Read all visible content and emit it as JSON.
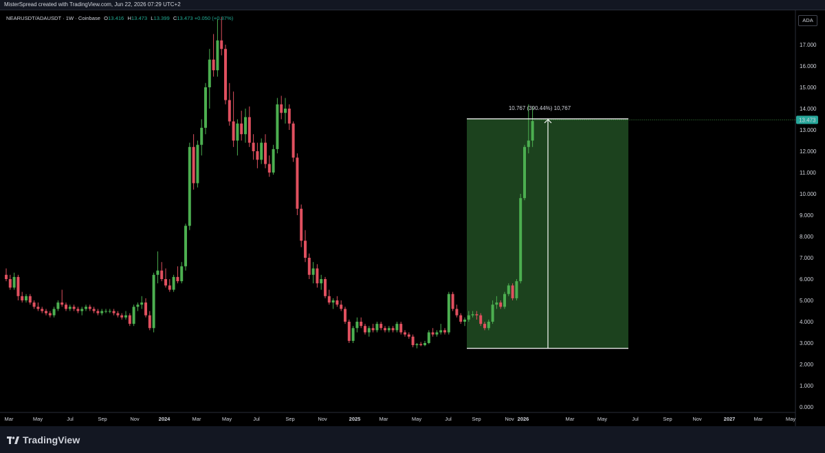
{
  "header": {
    "credit": "MisterSpread created with TradingView.com, Jun 22, 2026 07:29 UTC+2"
  },
  "legend": {
    "symbol": "NEARUSDT/ADAUSDT · 1W · Coinbase",
    "o_label": "O",
    "o_value": "13.416",
    "h_label": "H",
    "h_value": "13.473",
    "l_label": "L",
    "l_value": "13.399",
    "c_label": "C",
    "c_value": "13.473",
    "change": "+0.050 (+0.37%)"
  },
  "currency_button": "ADA",
  "footer": {
    "brand": "TradingView"
  },
  "colors": {
    "up": "#22ab94",
    "up_candle": "#4caf50",
    "down": "#f23645",
    "down_candle": "#e0505f",
    "measure_fill": "#1e4620",
    "last_price_bg": "#26a69a",
    "background": "#000000"
  },
  "chart_data": {
    "type": "candlestick",
    "timeframe": "1W",
    "ylim": [
      0,
      18
    ],
    "y_ticks": [
      "0.000",
      "1.000",
      "2.000",
      "3.000",
      "4.000",
      "5.000",
      "6.000",
      "7.000",
      "8.000",
      "9.000",
      "10.000",
      "11.000",
      "12.000",
      "13.000",
      "14.000",
      "15.000",
      "16.000",
      "17.000"
    ],
    "x_ticks": [
      "Mar",
      "May",
      "Jul",
      "Sep",
      "Nov",
      "2024",
      "Mar",
      "May",
      "Jul",
      "Sep",
      "Nov",
      "2025",
      "Mar",
      "May",
      "Jul",
      "Sep",
      "Nov",
      "2026",
      "Mar",
      "May",
      "Jul",
      "Sep",
      "Nov",
      "2027",
      "Mar",
      "May"
    ],
    "x_ticks_bold": [
      "2024",
      "2025",
      "2026",
      "2027"
    ],
    "last_price": "13.473",
    "measure": {
      "label": "10.767 (390.44%) 10,767",
      "low": 2.75,
      "high": 13.52
    },
    "ohlc": [
      [
        6.2,
        6.5,
        5.9,
        6.0
      ],
      [
        6.0,
        6.2,
        5.5,
        5.6
      ],
      [
        5.6,
        6.3,
        5.5,
        6.1
      ],
      [
        6.1,
        6.2,
        5.0,
        5.2
      ],
      [
        5.2,
        5.4,
        4.9,
        5.0
      ],
      [
        5.0,
        5.3,
        4.9,
        5.2
      ],
      [
        5.2,
        5.3,
        4.8,
        4.9
      ],
      [
        4.9,
        5.0,
        4.6,
        4.7
      ],
      [
        4.7,
        4.9,
        4.5,
        4.6
      ],
      [
        4.6,
        4.7,
        4.4,
        4.5
      ],
      [
        4.5,
        4.6,
        4.3,
        4.4
      ],
      [
        4.4,
        4.5,
        4.2,
        4.3
      ],
      [
        4.3,
        4.7,
        4.2,
        4.6
      ],
      [
        4.6,
        5.0,
        4.5,
        4.9
      ],
      [
        4.9,
        5.5,
        4.7,
        4.8
      ],
      [
        4.8,
        4.9,
        4.5,
        4.6
      ],
      [
        4.6,
        4.8,
        4.5,
        4.7
      ],
      [
        4.7,
        4.8,
        4.5,
        4.6
      ],
      [
        4.6,
        4.7,
        4.4,
        4.5
      ],
      [
        4.5,
        4.7,
        4.3,
        4.6
      ],
      [
        4.6,
        4.8,
        4.5,
        4.7
      ],
      [
        4.7,
        4.8,
        4.5,
        4.6
      ],
      [
        4.6,
        4.7,
        4.4,
        4.5
      ],
      [
        4.5,
        4.6,
        4.3,
        4.4
      ],
      [
        4.4,
        4.6,
        4.3,
        4.5
      ],
      [
        4.5,
        4.6,
        4.4,
        4.5
      ],
      [
        4.5,
        4.6,
        4.4,
        4.5
      ],
      [
        4.5,
        4.6,
        4.3,
        4.4
      ],
      [
        4.4,
        4.5,
        4.2,
        4.3
      ],
      [
        4.3,
        4.4,
        4.1,
        4.2
      ],
      [
        4.2,
        4.5,
        4.1,
        4.3
      ],
      [
        4.3,
        4.4,
        3.8,
        3.9
      ],
      [
        3.9,
        4.8,
        3.8,
        4.7
      ],
      [
        4.7,
        4.9,
        4.5,
        4.8
      ],
      [
        4.8,
        5.2,
        4.6,
        4.9
      ],
      [
        4.9,
        5.1,
        4.2,
        4.3
      ],
      [
        4.3,
        4.5,
        3.6,
        3.7
      ],
      [
        3.7,
        6.3,
        3.5,
        6.2
      ],
      [
        6.2,
        7.3,
        5.8,
        6.4
      ],
      [
        6.4,
        6.8,
        5.9,
        6.0
      ],
      [
        6.0,
        6.5,
        5.6,
        5.7
      ],
      [
        5.7,
        6.0,
        5.4,
        5.5
      ],
      [
        5.5,
        6.2,
        5.4,
        6.1
      ],
      [
        6.1,
        6.6,
        5.8,
        5.9
      ],
      [
        5.9,
        6.8,
        5.8,
        6.6
      ],
      [
        6.6,
        8.6,
        6.4,
        8.5
      ],
      [
        8.5,
        12.4,
        8.3,
        12.2
      ],
      [
        12.2,
        12.8,
        10.2,
        10.5
      ],
      [
        10.5,
        12.5,
        10.3,
        12.3
      ],
      [
        12.3,
        13.5,
        11.8,
        13.1
      ],
      [
        13.1,
        15.2,
        12.8,
        15.0
      ],
      [
        15.0,
        16.8,
        14.0,
        16.3
      ],
      [
        16.3,
        17.5,
        15.5,
        15.8
      ],
      [
        15.8,
        18.2,
        15.5,
        17.2
      ],
      [
        17.2,
        18.3,
        16.5,
        16.8
      ],
      [
        16.8,
        17.0,
        14.2,
        14.4
      ],
      [
        14.4,
        15.2,
        13.2,
        13.4
      ],
      [
        13.4,
        14.8,
        12.2,
        12.5
      ],
      [
        12.5,
        13.5,
        11.8,
        13.3
      ],
      [
        13.3,
        13.9,
        12.5,
        12.8
      ],
      [
        12.8,
        14.0,
        12.4,
        13.6
      ],
      [
        13.6,
        14.1,
        12.2,
        12.4
      ],
      [
        12.4,
        12.8,
        11.6,
        12.0
      ],
      [
        12.0,
        12.4,
        11.2,
        11.6
      ],
      [
        11.6,
        12.6,
        11.4,
        12.4
      ],
      [
        12.4,
        12.8,
        11.2,
        11.4
      ],
      [
        11.4,
        11.8,
        10.8,
        11.0
      ],
      [
        11.0,
        12.3,
        10.9,
        12.1
      ],
      [
        12.1,
        14.5,
        11.9,
        14.2
      ],
      [
        14.2,
        14.6,
        13.5,
        13.8
      ],
      [
        13.8,
        14.5,
        13.3,
        14.0
      ],
      [
        14.0,
        14.2,
        13.0,
        13.3
      ],
      [
        13.3,
        13.4,
        11.5,
        11.7
      ],
      [
        11.7,
        11.9,
        9.0,
        9.3
      ],
      [
        9.3,
        9.5,
        7.5,
        7.8
      ],
      [
        7.8,
        8.3,
        6.8,
        7.0
      ],
      [
        7.0,
        7.2,
        6.0,
        6.2
      ],
      [
        6.2,
        6.8,
        5.8,
        6.5
      ],
      [
        6.5,
        6.7,
        5.6,
        5.8
      ],
      [
        5.8,
        6.2,
        5.5,
        6.0
      ],
      [
        6.0,
        6.1,
        5.1,
        5.2
      ],
      [
        5.2,
        5.5,
        4.8,
        4.9
      ],
      [
        4.9,
        5.1,
        4.6,
        5.0
      ],
      [
        5.0,
        5.2,
        4.7,
        4.8
      ],
      [
        4.8,
        5.0,
        4.5,
        4.6
      ],
      [
        4.6,
        4.7,
        3.9,
        4.0
      ],
      [
        4.0,
        4.1,
        3.0,
        3.1
      ],
      [
        3.1,
        3.8,
        3.0,
        3.7
      ],
      [
        3.7,
        4.2,
        3.5,
        4.0
      ],
      [
        4.0,
        4.2,
        3.7,
        3.8
      ],
      [
        3.8,
        3.9,
        3.4,
        3.5
      ],
      [
        3.5,
        3.8,
        3.3,
        3.7
      ],
      [
        3.7,
        3.9,
        3.5,
        3.6
      ],
      [
        3.6,
        4.0,
        3.5,
        3.9
      ],
      [
        3.9,
        4.0,
        3.6,
        3.7
      ],
      [
        3.7,
        3.8,
        3.5,
        3.6
      ],
      [
        3.6,
        3.8,
        3.5,
        3.7
      ],
      [
        3.7,
        3.8,
        3.5,
        3.6
      ],
      [
        3.6,
        4.0,
        3.5,
        3.9
      ],
      [
        3.9,
        4.0,
        3.4,
        3.5
      ],
      [
        3.5,
        3.6,
        3.3,
        3.4
      ],
      [
        3.4,
        3.5,
        3.2,
        3.3
      ],
      [
        3.3,
        3.4,
        2.8,
        2.9
      ],
      [
        2.9,
        3.0,
        2.75,
        2.95
      ],
      [
        2.95,
        3.05,
        2.85,
        2.9
      ],
      [
        2.9,
        3.1,
        2.85,
        3.0
      ],
      [
        3.0,
        3.6,
        2.95,
        3.5
      ],
      [
        3.5,
        3.7,
        3.3,
        3.4
      ],
      [
        3.4,
        3.6,
        3.3,
        3.5
      ],
      [
        3.5,
        3.9,
        3.4,
        3.6
      ],
      [
        3.6,
        3.7,
        3.4,
        3.5
      ],
      [
        3.5,
        5.4,
        3.4,
        5.3
      ],
      [
        5.3,
        5.4,
        4.5,
        4.6
      ],
      [
        4.6,
        4.8,
        4.2,
        4.3
      ],
      [
        4.3,
        4.4,
        3.9,
        4.0
      ],
      [
        4.0,
        4.2,
        3.8,
        4.1
      ],
      [
        4.1,
        4.5,
        4.0,
        4.3
      ],
      [
        4.3,
        4.5,
        4.2,
        4.35
      ],
      [
        4.35,
        4.5,
        4.1,
        4.3
      ],
      [
        4.3,
        4.4,
        3.8,
        3.9
      ],
      [
        3.9,
        4.0,
        3.6,
        3.7
      ],
      [
        3.7,
        4.1,
        3.6,
        4.0
      ],
      [
        4.0,
        5.0,
        3.9,
        4.8
      ],
      [
        4.8,
        5.2,
        4.6,
        4.9
      ],
      [
        4.9,
        5.0,
        4.6,
        4.7
      ],
      [
        4.7,
        5.4,
        4.6,
        5.3
      ],
      [
        5.3,
        5.8,
        5.2,
        5.7
      ],
      [
        5.7,
        5.8,
        5.0,
        5.1
      ],
      [
        5.1,
        6.0,
        5.0,
        5.9
      ],
      [
        5.9,
        10.0,
        5.8,
        9.8
      ],
      [
        9.8,
        12.3,
        9.7,
        12.2
      ],
      [
        12.2,
        14.2,
        11.9,
        12.5
      ],
      [
        12.5,
        14.1,
        12.2,
        13.416
      ]
    ]
  }
}
